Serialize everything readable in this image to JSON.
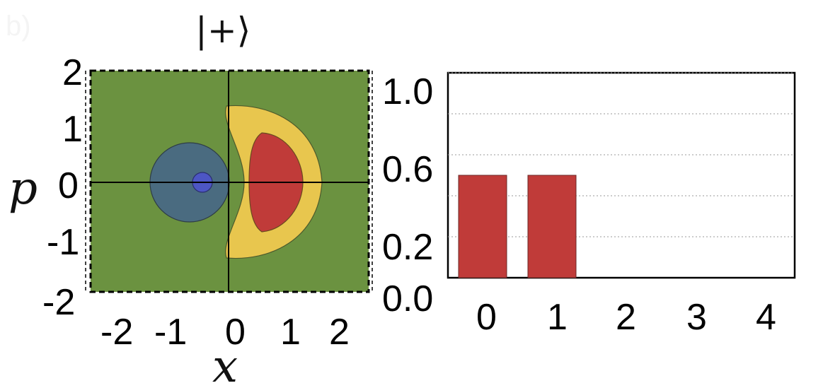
{
  "panel_label": "b)",
  "colors": {
    "background_field": "#6b9240",
    "negative_outer": "#4a6b80",
    "negative_inner": "#4d56c4",
    "positive_outer": "#e8c64e",
    "positive_inner": "#c03b39",
    "bar": "#c03b39"
  },
  "chart_data": [
    {
      "type": "heatmap",
      "title": "|+⟩",
      "xlabel": "x",
      "ylabel": "p",
      "xlim": [
        -2.7,
        2.7
      ],
      "ylim": [
        -2,
        2
      ],
      "x_ticks": [
        "-2",
        "-1",
        "0",
        "1",
        "2"
      ],
      "y_ticks": [
        "2",
        "1",
        "0",
        "-1",
        "-2"
      ],
      "regions": [
        {
          "name": "negative-outer",
          "shape": "disk",
          "center": [
            -0.75,
            0
          ],
          "radius": 0.75
        },
        {
          "name": "negative-inner",
          "shape": "disk",
          "center": [
            -0.5,
            0
          ],
          "radius": 0.18
        },
        {
          "name": "positive-outer",
          "shape": "crescent",
          "center": [
            0.6,
            0
          ],
          "extent_x": [
            -0.1,
            1.8
          ],
          "extent_p": [
            -1.3,
            1.3
          ]
        },
        {
          "name": "positive-inner",
          "shape": "crescent",
          "center": [
            0.6,
            0
          ],
          "extent_x": [
            0.3,
            1.4
          ],
          "extent_p": [
            -0.9,
            0.9
          ]
        }
      ]
    },
    {
      "type": "bar",
      "categories": [
        "0",
        "1",
        "2",
        "3",
        "4"
      ],
      "values": [
        0.5,
        0.5,
        0,
        0,
        0
      ],
      "ylim": [
        0,
        1.0
      ],
      "y_ticks": [
        "1.0",
        "0.6",
        "0.2",
        "0.0"
      ],
      "grid": true
    }
  ]
}
